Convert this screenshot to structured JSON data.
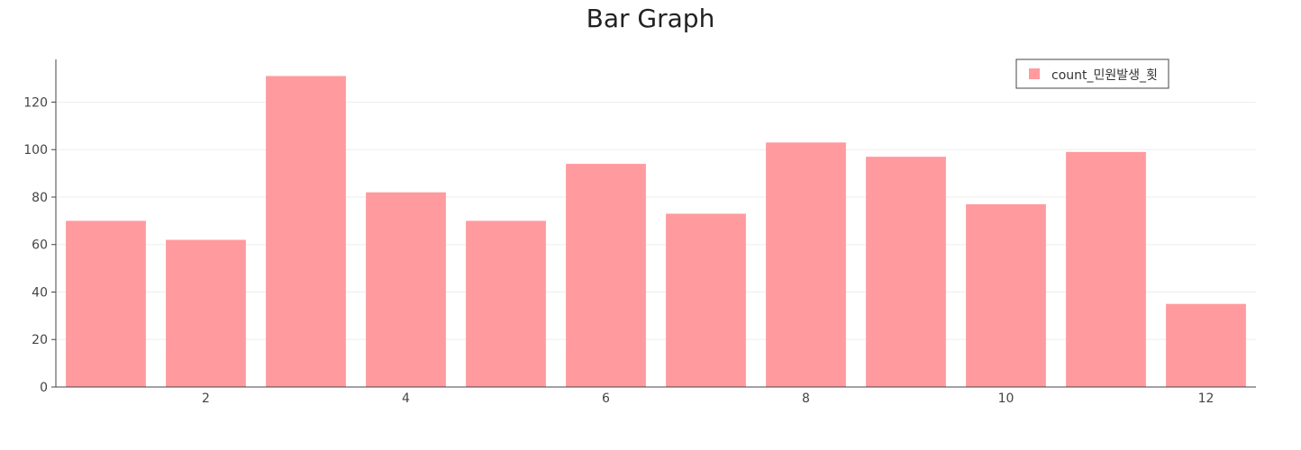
{
  "chart_data": {
    "type": "bar",
    "title": "Bar Graph",
    "xlabel": "",
    "ylabel": "",
    "x": [
      1,
      2,
      3,
      4,
      5,
      6,
      7,
      8,
      9,
      10,
      11,
      12
    ],
    "series": [
      {
        "name": "count_민원발생_횟",
        "values": [
          70,
          62,
          131,
          82,
          70,
          94,
          73,
          103,
          97,
          77,
          99,
          35
        ],
        "color": "#ff9a9e"
      }
    ],
    "xlim": [
      0.5,
      12.5
    ],
    "ylim": [
      0,
      138
    ],
    "xticks": [
      2,
      4,
      6,
      8,
      10,
      12
    ],
    "yticks": [
      0,
      20,
      40,
      60,
      80,
      100,
      120
    ],
    "grid": true,
    "legend": "top-right"
  }
}
